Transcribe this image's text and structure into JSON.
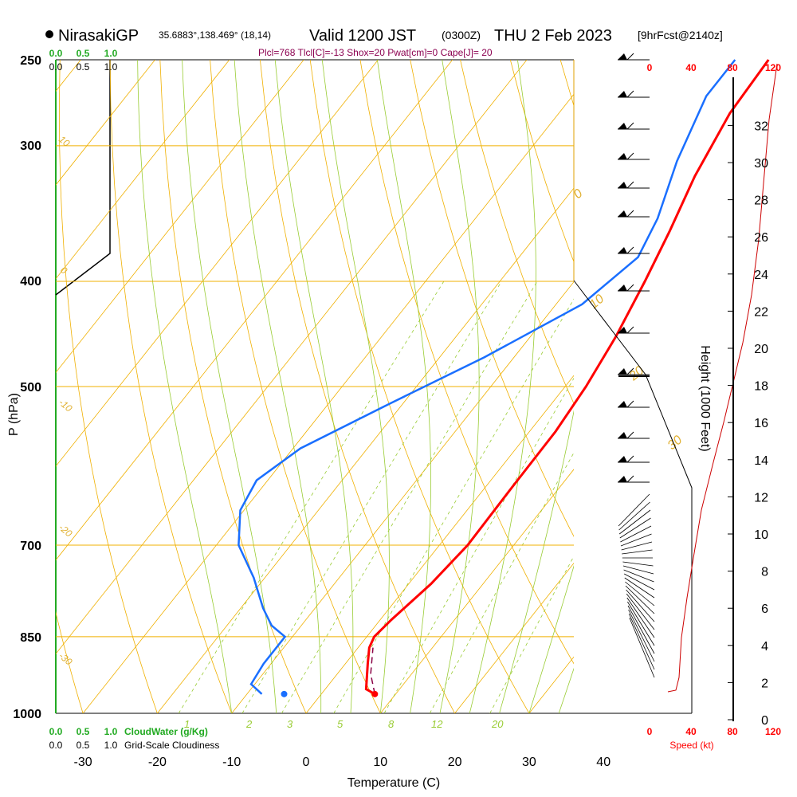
{
  "header": {
    "site": "NirasakiGP",
    "coords": "35.6883°,138.469° (18,14)",
    "valid_main": "Valid 1200 JST",
    "valid_utc": "(0300Z)",
    "valid_date": "THU 2 Feb 2023",
    "forecast": "[9hrFcst@2140z]",
    "indices": "Plcl=768 Tlcl[C]=-13 Shox=20 Pwat[cm]=0 Cape[J]= 20"
  },
  "axes": {
    "ylabel": "P (hPa)",
    "xlabel": "Temperature (C)",
    "height_label": "Height (1000 Feet)",
    "speed_label": "Speed (kt)",
    "cloudwater_label": "CloudWater (g/Kg)",
    "cloudiness_label": "Grid-Scale Cloudiness",
    "pressure_ticks": [
      "250",
      "300",
      "400",
      "500",
      "700",
      "850",
      "1000"
    ],
    "temp_ticks": [
      "-30",
      "-20",
      "-10",
      "0",
      "10",
      "20",
      "30",
      "40"
    ],
    "height_ticks": [
      "0",
      "2",
      "4",
      "6",
      "8",
      "10",
      "12",
      "14",
      "16",
      "18",
      "20",
      "22",
      "24",
      "26",
      "28",
      "30",
      "32"
    ],
    "cloud_ticks": [
      "0.0",
      "0.5",
      "1.0"
    ],
    "speed_ticks": [
      "0",
      "40",
      "80",
      "120"
    ]
  },
  "isotherm_labels": [
    "0",
    "10",
    "20",
    "30",
    "10",
    "0",
    "-10",
    "-20",
    "-30"
  ],
  "mixing_ratio_labels": [
    "1",
    "2",
    "3",
    "5",
    "8",
    "12",
    "20"
  ],
  "colors": {
    "temperature": "#ff0000",
    "dewpoint": "#1a6fff",
    "isotherm": "#f0b000",
    "adiabat": "#99cc33",
    "cloud": "#22aa22",
    "speed": "#cc0000",
    "indices": "#8b0050"
  },
  "chart_data": {
    "type": "line",
    "xlabel": "Temperature (C)",
    "ylabel": "P (hPa)",
    "ylim": [
      1000,
      250
    ],
    "xlim": [
      -33,
      46
    ],
    "y_scale": "log",
    "series": [
      {
        "name": "temperature",
        "points": [
          [
            7.2,
            960
          ],
          [
            5.5,
            950
          ],
          [
            3.0,
            900
          ],
          [
            1.5,
            870
          ],
          [
            1.0,
            850
          ],
          [
            1.5,
            820
          ],
          [
            3.0,
            760
          ],
          [
            3.8,
            700
          ],
          [
            3.6,
            620
          ],
          [
            3.5,
            550
          ],
          [
            2.8,
            500
          ],
          [
            1.5,
            450
          ],
          [
            -0.5,
            400
          ],
          [
            -2.5,
            360
          ],
          [
            -5.0,
            320
          ],
          [
            -7.0,
            280
          ],
          [
            -7.5,
            250
          ]
        ]
      },
      {
        "name": "dewpoint",
        "points": [
          [
            -8.0,
            960
          ],
          [
            -10.5,
            940
          ],
          [
            -11.0,
            900
          ],
          [
            -11.0,
            850
          ],
          [
            -14.0,
            830
          ],
          [
            -17.0,
            800
          ],
          [
            -21.5,
            750
          ],
          [
            -27.0,
            700
          ],
          [
            -30.5,
            650
          ],
          [
            -31.5,
            610
          ],
          [
            -29.0,
            570
          ],
          [
            -22.0,
            520
          ],
          [
            -14.0,
            470
          ],
          [
            -6.5,
            420
          ],
          [
            -4.0,
            380
          ],
          [
            -5.5,
            350
          ],
          [
            -9.0,
            310
          ],
          [
            -12.0,
            270
          ],
          [
            -12.0,
            250
          ]
        ]
      },
      {
        "name": "parcel",
        "points": [
          [
            7.2,
            960
          ],
          [
            4.5,
            920
          ],
          [
            2.0,
            870
          ]
        ]
      }
    ],
    "surface_dewpoint_marker": [
      -5.0,
      960
    ]
  }
}
